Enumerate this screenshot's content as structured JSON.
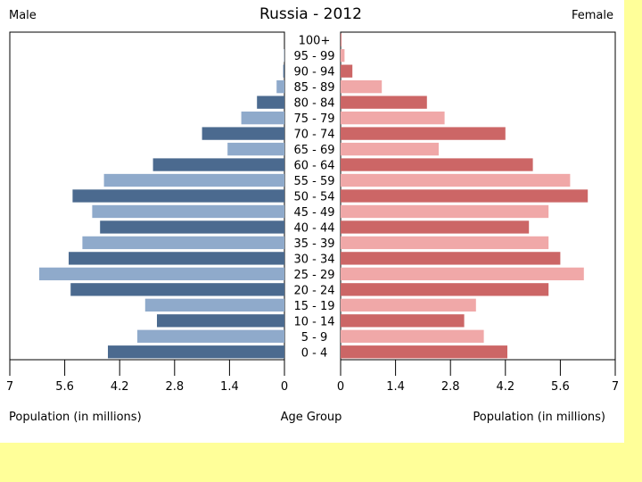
{
  "chart_data": {
    "type": "bar",
    "orientation": "horizontal",
    "layout": "population-pyramid",
    "title": "Russia - 2012",
    "left_header": "Male",
    "right_header": "Female",
    "xlabel_left": "Population (in millions)",
    "xlabel_right": "Population (in millions)",
    "center_label": "Age Group",
    "xlim": [
      0,
      7
    ],
    "xticks": [
      "0",
      "1.4",
      "2.8",
      "4.2",
      "5.6",
      "7"
    ],
    "categories": [
      "0 - 4",
      "5 - 9",
      "10 - 14",
      "15 - 19",
      "20 - 24",
      "25 - 29",
      "30 - 34",
      "35 - 39",
      "40 - 44",
      "45 - 49",
      "50 - 54",
      "55 - 59",
      "60 - 64",
      "65 - 69",
      "70 - 74",
      "75 - 79",
      "80 - 84",
      "85 - 89",
      "90 - 94",
      "95 - 99",
      "100+"
    ],
    "series": [
      {
        "name": "Male",
        "values": [
          4.5,
          3.75,
          3.25,
          3.55,
          5.45,
          6.25,
          5.5,
          5.15,
          4.7,
          4.9,
          5.4,
          4.6,
          3.35,
          1.45,
          2.1,
          1.1,
          0.7,
          0.2,
          0.03,
          0.01,
          0.0
        ]
      },
      {
        "name": "Female",
        "values": [
          4.25,
          3.65,
          3.15,
          3.45,
          5.3,
          6.2,
          5.6,
          5.3,
          4.8,
          5.3,
          6.3,
          5.85,
          4.9,
          2.5,
          4.2,
          2.65,
          2.2,
          1.05,
          0.3,
          0.1,
          0.02
        ]
      }
    ],
    "colors": {
      "male_dark": "#4b6a8f",
      "male_light": "#8faacb",
      "female_dark": "#cc6666",
      "female_light": "#f0a8a8",
      "background": "#ffff99"
    },
    "grid": false
  }
}
